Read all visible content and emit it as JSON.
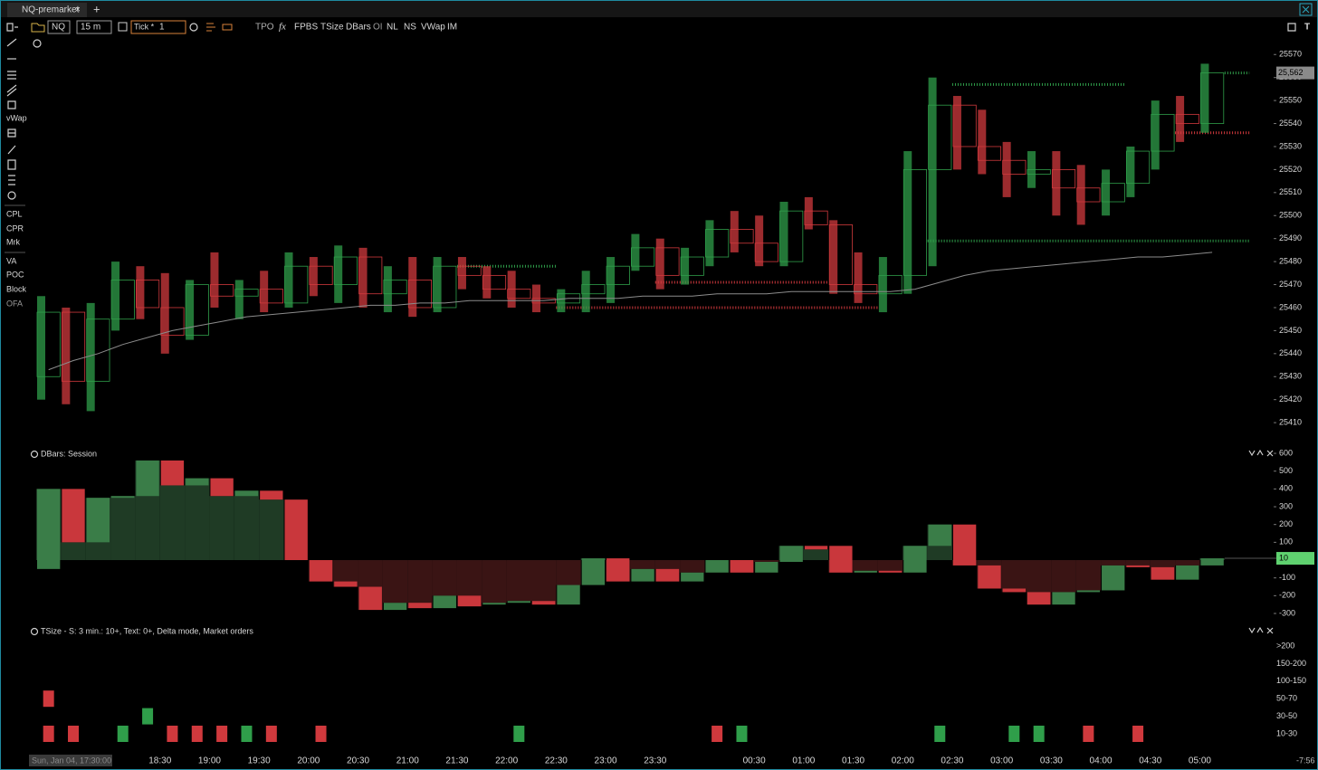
{
  "tab": {
    "title": "NQ-premarket",
    "close": "×",
    "add": "+"
  },
  "toolbar": {
    "symbol": "NQ",
    "interval": "15 m",
    "tick_label": "Tick *",
    "tick_value": "1",
    "fx": "fx",
    "indicators": [
      "TPO",
      "FPBS",
      "TSize",
      "DBars",
      "OI",
      "NL",
      "NS",
      "VWap",
      "IM"
    ]
  },
  "sidebar": {
    "top": [
      "vWap"
    ],
    "groups": [
      [
        "CPL",
        "CPR",
        "Mrk"
      ],
      [
        "VA",
        "POC",
        "Block",
        "OFA"
      ]
    ]
  },
  "price_pane": {
    "ylim": [
      25401,
      25576
    ],
    "yticks": [
      25570,
      25560,
      25550,
      25540,
      25530,
      25520,
      25510,
      25500,
      25490,
      25480,
      25470,
      25460,
      25450,
      25440,
      25430,
      25420,
      25410
    ],
    "last_price": {
      "value": 25562,
      "label": "25,562"
    },
    "up_color": "#2f9e4a",
    "down_color": "#d0393d",
    "bars": [
      {
        "open": 25430,
        "high": 25465,
        "low": 25420,
        "close": 25458
      },
      {
        "open": 25458,
        "high": 25460,
        "low": 25418,
        "close": 25428
      },
      {
        "open": 25428,
        "high": 25462,
        "low": 25415,
        "close": 25455
      },
      {
        "open": 25455,
        "high": 25480,
        "low": 25450,
        "close": 25472
      },
      {
        "open": 25472,
        "high": 25478,
        "low": 25455,
        "close": 25460
      },
      {
        "open": 25460,
        "high": 25475,
        "low": 25440,
        "close": 25448
      },
      {
        "open": 25448,
        "high": 25472,
        "low": 25446,
        "close": 25470
      },
      {
        "open": 25470,
        "high": 25484,
        "low": 25460,
        "close": 25465
      },
      {
        "open": 25465,
        "high": 25472,
        "low": 25455,
        "close": 25468
      },
      {
        "open": 25468,
        "high": 25476,
        "low": 25458,
        "close": 25462
      },
      {
        "open": 25462,
        "high": 25484,
        "low": 25460,
        "close": 25478
      },
      {
        "open": 25478,
        "high": 25482,
        "low": 25465,
        "close": 25470
      },
      {
        "open": 25470,
        "high": 25487,
        "low": 25462,
        "close": 25482
      },
      {
        "open": 25482,
        "high": 25486,
        "low": 25460,
        "close": 25466
      },
      {
        "open": 25466,
        "high": 25478,
        "low": 25458,
        "close": 25472
      },
      {
        "open": 25472,
        "high": 25482,
        "low": 25456,
        "close": 25460
      },
      {
        "open": 25460,
        "high": 25482,
        "low": 25458,
        "close": 25478
      },
      {
        "open": 25478,
        "high": 25482,
        "low": 25468,
        "close": 25474
      },
      {
        "open": 25474,
        "high": 25478,
        "low": 25464,
        "close": 25468
      },
      {
        "open": 25468,
        "high": 25476,
        "low": 25460,
        "close": 25464
      },
      {
        "open": 25464,
        "high": 25470,
        "low": 25458,
        "close": 25462
      },
      {
        "open": 25462,
        "high": 25468,
        "low": 25458,
        "close": 25466
      },
      {
        "open": 25466,
        "high": 25476,
        "low": 25458,
        "close": 25470
      },
      {
        "open": 25470,
        "high": 25482,
        "low": 25462,
        "close": 25478
      },
      {
        "open": 25478,
        "high": 25492,
        "low": 25476,
        "close": 25486
      },
      {
        "open": 25486,
        "high": 25490,
        "low": 25468,
        "close": 25474
      },
      {
        "open": 25474,
        "high": 25486,
        "low": 25470,
        "close": 25482
      },
      {
        "open": 25482,
        "high": 25498,
        "low": 25478,
        "close": 25494
      },
      {
        "open": 25494,
        "high": 25502,
        "low": 25484,
        "close": 25488
      },
      {
        "open": 25488,
        "high": 25500,
        "low": 25478,
        "close": 25480
      },
      {
        "open": 25480,
        "high": 25506,
        "low": 25478,
        "close": 25502
      },
      {
        "open": 25502,
        "high": 25508,
        "low": 25494,
        "close": 25496
      },
      {
        "open": 25496,
        "high": 25498,
        "low": 25466,
        "close": 25470
      },
      {
        "open": 25470,
        "high": 25484,
        "low": 25462,
        "close": 25466
      },
      {
        "open": 25466,
        "high": 25482,
        "low": 25458,
        "close": 25474
      },
      {
        "open": 25474,
        "high": 25528,
        "low": 25466,
        "close": 25520
      },
      {
        "open": 25520,
        "high": 25560,
        "low": 25478,
        "close": 25548
      },
      {
        "open": 25548,
        "high": 25552,
        "low": 25520,
        "close": 25530
      },
      {
        "open": 25530,
        "high": 25546,
        "low": 25518,
        "close": 25524
      },
      {
        "open": 25524,
        "high": 25532,
        "low": 25508,
        "close": 25518
      },
      {
        "open": 25518,
        "high": 25528,
        "low": 25512,
        "close": 25520
      },
      {
        "open": 25520,
        "high": 25528,
        "low": 25500,
        "close": 25512
      },
      {
        "open": 25512,
        "high": 25522,
        "low": 25496,
        "close": 25506
      },
      {
        "open": 25506,
        "high": 25520,
        "low": 25500,
        "close": 25514
      },
      {
        "open": 25514,
        "high": 25530,
        "low": 25508,
        "close": 25528
      },
      {
        "open": 25528,
        "high": 25550,
        "low": 25520,
        "close": 25544
      },
      {
        "open": 25544,
        "high": 25552,
        "low": 25532,
        "close": 25540
      },
      {
        "open": 25540,
        "high": 25566,
        "low": 25536,
        "close": 25562
      }
    ],
    "vwap_color": "#8c8c8c",
    "vwap": [
      25433,
      25437,
      25440,
      25444,
      25447,
      25450,
      25452,
      25454,
      25456,
      25457,
      25458,
      25459,
      25460,
      25461,
      25461,
      25462,
      25462,
      25463,
      25463,
      25463,
      25463,
      25464,
      25464,
      25464,
      25465,
      25465,
      25465,
      25466,
      25466,
      25466,
      25467,
      25467,
      25467,
      25467,
      25467,
      25468,
      25471,
      25474,
      25476,
      25477,
      25478,
      25479,
      25480,
      25481,
      25482,
      25482,
      25483,
      25484
    ],
    "levels": [
      {
        "price": 25557,
        "from": 37,
        "to": 44,
        "color": "#2f9e4a"
      },
      {
        "price": 25489,
        "from": 36,
        "to": 49,
        "color": "#2f9e4a"
      },
      {
        "price": 25536,
        "from": 46,
        "to": 49,
        "color": "#d0393d"
      },
      {
        "price": 25460,
        "from": 21,
        "to": 34,
        "color": "#d0393d"
      },
      {
        "price": 25471,
        "from": 25,
        "to": 32,
        "color": "#d0393d"
      },
      {
        "price": 25478,
        "from": 17,
        "to": 21,
        "color": "#2f9e4a"
      },
      {
        "price": 25562,
        "from": 48,
        "to": 49,
        "color": "#2f9e4a"
      }
    ],
    "crosshair_time": "Sun, Jan 04, 17:30:00"
  },
  "delta_pane": {
    "title": "DBars: Session",
    "ylim": [
      -361,
      646
    ],
    "yticks": [
      600,
      500,
      400,
      300,
      200,
      100,
      -100,
      -200,
      -300
    ],
    "last": 10,
    "up_color": "#3a7d48",
    "down_color": "#c9373c",
    "up_fill": "#1f3b25",
    "down_fill": "#3a1414",
    "bars": [
      {
        "open": -50,
        "close": 400
      },
      {
        "open": 400,
        "close": 100
      },
      {
        "open": 100,
        "close": 350
      },
      {
        "open": 350,
        "close": 360
      },
      {
        "open": 360,
        "close": 560
      },
      {
        "open": 560,
        "close": 420
      },
      {
        "open": 420,
        "close": 460
      },
      {
        "open": 460,
        "close": 360
      },
      {
        "open": 360,
        "close": 390
      },
      {
        "open": 390,
        "close": 340
      },
      {
        "open": 340,
        "close": 0
      },
      {
        "open": 0,
        "close": -120
      },
      {
        "open": -120,
        "close": -150
      },
      {
        "open": -150,
        "close": -280
      },
      {
        "open": -280,
        "close": -240
      },
      {
        "open": -240,
        "close": -270
      },
      {
        "open": -270,
        "close": -200
      },
      {
        "open": -200,
        "close": -260
      },
      {
        "open": -250,
        "close": -240
      },
      {
        "open": -240,
        "close": -230
      },
      {
        "open": -230,
        "close": -250
      },
      {
        "open": -250,
        "close": -140
      },
      {
        "open": -140,
        "close": 10
      },
      {
        "open": 10,
        "close": -120
      },
      {
        "open": -120,
        "close": -50
      },
      {
        "open": -50,
        "close": -120
      },
      {
        "open": -120,
        "close": -70
      },
      {
        "open": -70,
        "close": 0
      },
      {
        "open": 0,
        "close": -70
      },
      {
        "open": -70,
        "close": -10
      },
      {
        "open": -10,
        "close": 80
      },
      {
        "open": 80,
        "close": 60
      },
      {
        "open": 80,
        "close": -70
      },
      {
        "open": -70,
        "close": -60
      },
      {
        "open": -60,
        "close": -70
      },
      {
        "open": -70,
        "close": 80
      },
      {
        "open": 80,
        "close": 200
      },
      {
        "open": 200,
        "close": -30
      },
      {
        "open": -30,
        "close": -160
      },
      {
        "open": -160,
        "close": -180
      },
      {
        "open": -180,
        "close": -250
      },
      {
        "open": -250,
        "close": -180
      },
      {
        "open": -180,
        "close": -170
      },
      {
        "open": -170,
        "close": -30
      },
      {
        "open": -30,
        "close": -40
      },
      {
        "open": -40,
        "close": -110
      },
      {
        "open": -110,
        "close": -30
      },
      {
        "open": -30,
        "close": 10
      }
    ]
  },
  "tsize_pane": {
    "title": "TSize - S: 3 min.: 10+, Text: 0+, Delta mode,  Market orders",
    "rows": [
      ">200",
      "150-200",
      "100-150",
      "50-70",
      "30-50",
      "10-30"
    ],
    "markers": [
      {
        "bar": 0,
        "row": 3,
        "color": "#d0393d"
      },
      {
        "bar": 0,
        "row": 5,
        "color": "#d0393d"
      },
      {
        "bar": 1,
        "row": 5,
        "color": "#d0393d"
      },
      {
        "bar": 3,
        "row": 5,
        "color": "#2f9e4a"
      },
      {
        "bar": 4,
        "row": 4,
        "color": "#2f9e4a"
      },
      {
        "bar": 5,
        "row": 5,
        "color": "#d0393d"
      },
      {
        "bar": 6,
        "row": 5,
        "color": "#d0393d"
      },
      {
        "bar": 7,
        "row": 5,
        "color": "#d0393d"
      },
      {
        "bar": 8,
        "row": 5,
        "color": "#2f9e4a"
      },
      {
        "bar": 9,
        "row": 5,
        "color": "#d0393d"
      },
      {
        "bar": 11,
        "row": 5,
        "color": "#d0393d"
      },
      {
        "bar": 19,
        "row": 5,
        "color": "#2f9e4a"
      },
      {
        "bar": 27,
        "row": 5,
        "color": "#d0393d"
      },
      {
        "bar": 28,
        "row": 5,
        "color": "#2f9e4a"
      },
      {
        "bar": 36,
        "row": 5,
        "color": "#2f9e4a"
      },
      {
        "bar": 39,
        "row": 5,
        "color": "#2f9e4a"
      },
      {
        "bar": 40,
        "row": 5,
        "color": "#2f9e4a"
      },
      {
        "bar": 42,
        "row": 5,
        "color": "#d0393d"
      },
      {
        "bar": 44,
        "row": 5,
        "color": "#d0393d"
      }
    ]
  },
  "time_axis": {
    "labels": [
      "18:30",
      "19:00",
      "19:30",
      "20:00",
      "20:30",
      "21:00",
      "21:30",
      "22:00",
      "22:30",
      "23:00",
      "23:30",
      "00:30",
      "01:00",
      "01:30",
      "02:00",
      "02:30",
      "03:00",
      "03:30",
      "04:00",
      "04:30",
      "05:00"
    ],
    "clock": "-7:56"
  }
}
